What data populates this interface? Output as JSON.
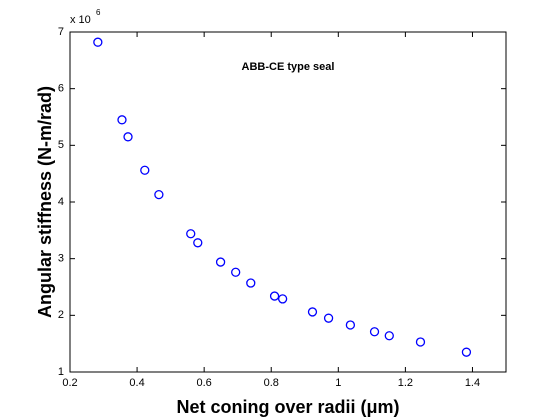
{
  "chart_data": {
    "type": "scatter",
    "annotation": "ABB-CE type seal",
    "x_label": "Net coning over radii (μm)",
    "y_label": "Angular stiffness (N-m/rad)",
    "y_multiplier": "x 10",
    "y_multiplier_exponent": "6",
    "marker_color": "#0000ff",
    "x": [
      0.283,
      0.355,
      0.373,
      0.423,
      0.465,
      0.56,
      0.581,
      0.649,
      0.694,
      0.739,
      0.81,
      0.834,
      0.923,
      0.971,
      1.036,
      1.108,
      1.152,
      1.245,
      1.382
    ],
    "values": [
      6.82,
      5.45,
      5.15,
      4.56,
      4.13,
      3.44,
      3.28,
      2.94,
      2.76,
      2.57,
      2.34,
      2.29,
      2.06,
      1.95,
      1.83,
      1.71,
      1.64,
      1.53,
      1.35
    ],
    "xlim": [
      0.2,
      1.5
    ],
    "ylim": [
      1,
      7
    ],
    "xticks": [
      0.2,
      0.4,
      0.6,
      0.8,
      1,
      1.2,
      1.4
    ],
    "yticks": [
      1,
      2,
      3,
      4,
      5,
      6,
      7
    ],
    "grid": false
  }
}
